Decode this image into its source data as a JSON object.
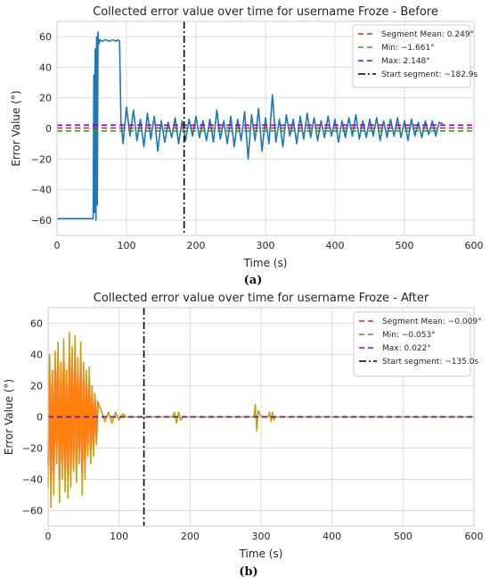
{
  "chart_data": [
    {
      "type": "line",
      "title": "Collected error value over time for username Froze - Before",
      "xlabel": "Time (s)",
      "ylabel": "Error Value (°)",
      "caption": "(a)",
      "xlim": [
        0,
        600
      ],
      "ylim": [
        -70,
        70
      ],
      "xticks": [
        0,
        100,
        200,
        300,
        400,
        500,
        600
      ],
      "yticks": [
        -60,
        -40,
        -20,
        0,
        20,
        40,
        60
      ],
      "xtick_labels": [
        "0",
        "100",
        "200",
        "300",
        "400",
        "500",
        "600"
      ],
      "ytick_labels": [
        "−60",
        "−40",
        "−20",
        "0",
        "20",
        "40",
        "60"
      ],
      "grid": true,
      "legend_position": "top-right",
      "colors": {
        "signal": "#1f77b4",
        "mean": "#d62728",
        "min": "#2ca02c",
        "max": "#9400d3",
        "start": "#000000"
      },
      "series": [
        {
          "x": [
            0,
            10,
            20,
            30,
            40,
            50,
            52,
            53,
            54,
            55,
            56,
            57,
            58,
            59,
            60,
            62,
            65,
            70,
            75,
            80,
            85,
            88,
            90,
            92,
            95,
            100,
            105,
            110,
            115,
            120,
            125,
            130,
            135,
            140,
            145,
            150,
            155,
            160,
            165,
            170,
            175,
            180,
            185,
            190,
            195,
            200,
            205,
            210,
            215,
            220,
            225,
            230,
            235,
            240,
            245,
            250,
            255,
            260,
            265,
            270,
            275,
            280,
            285,
            290,
            295,
            300,
            305,
            310,
            315,
            320,
            325,
            330,
            335,
            340,
            345,
            350,
            355,
            360,
            365,
            370,
            375,
            380,
            385,
            390,
            395,
            400,
            405,
            410,
            415,
            420,
            425,
            430,
            435,
            440,
            445,
            450,
            455,
            460,
            465,
            470,
            475,
            480,
            485,
            490,
            495,
            500,
            505,
            510,
            515,
            520,
            525,
            530,
            535,
            540,
            545,
            550,
            555
          ],
          "values": [
            -59,
            -59,
            -59,
            -59,
            -59,
            -59,
            -59,
            35,
            -55,
            52,
            -60,
            60,
            -50,
            63,
            55,
            58,
            57,
            58,
            57,
            58,
            57,
            58,
            57,
            5,
            -10,
            14,
            -5,
            12,
            -8,
            6,
            -12,
            10,
            -7,
            8,
            -15,
            5,
            -9,
            4,
            -6,
            7,
            -10,
            5,
            -8,
            6,
            -5,
            8,
            -6,
            5,
            -8,
            6,
            -9,
            12,
            -7,
            5,
            -10,
            8,
            -12,
            6,
            -8,
            11,
            -20,
            9,
            -8,
            13,
            -15,
            7,
            -10,
            22,
            -9,
            6,
            -12,
            9,
            -5,
            6,
            -10,
            8,
            -7,
            10,
            -6,
            7,
            -8,
            5,
            -6,
            8,
            -5,
            6,
            -9,
            5,
            -6,
            7,
            -5,
            9,
            -7,
            5,
            -6,
            6,
            -5,
            7,
            -8,
            5,
            -6,
            6,
            -5,
            7,
            -6,
            5,
            -8,
            6,
            -5,
            4,
            -6,
            5,
            -4,
            5,
            -5,
            4,
            3
          ]
        }
      ],
      "hlines": [
        {
          "name": "Segment Mean: 0.249°",
          "value": 0.249,
          "role": "mean"
        },
        {
          "name": "Min: −1.661°",
          "value": -1.661,
          "role": "min"
        },
        {
          "name": "Max: 2.148°",
          "value": 2.148,
          "role": "max"
        }
      ],
      "vlines": [
        {
          "name": "Start segment: ~182.9s",
          "value": 182.9,
          "role": "start"
        }
      ]
    },
    {
      "type": "line",
      "title": "Collected error value over time for username Froze - After",
      "xlabel": "Time (s)",
      "ylabel": "Error Value (°)",
      "caption": "(b)",
      "xlim": [
        0,
        600
      ],
      "ylim": [
        -70,
        70
      ],
      "xticks": [
        0,
        100,
        200,
        300,
        400,
        500,
        600
      ],
      "yticks": [
        -60,
        -40,
        -20,
        0,
        20,
        40,
        60
      ],
      "xtick_labels": [
        "0",
        "100",
        "200",
        "300",
        "400",
        "500",
        "600"
      ],
      "ytick_labels": [
        "−60",
        "−40",
        "−20",
        "0",
        "20",
        "40",
        "60"
      ],
      "grid": true,
      "legend_position": "top-right",
      "colors": {
        "signal": "#c8a000",
        "signal2": "#ff7f0e",
        "band": "#ff80ff",
        "mean": "#d62728",
        "min": "#2ca02c",
        "max": "#7f00ff",
        "start": "#000000"
      },
      "series": [
        {
          "x": [
            0,
            2,
            4,
            6,
            8,
            10,
            12,
            14,
            16,
            18,
            20,
            22,
            24,
            26,
            28,
            30,
            32,
            34,
            36,
            38,
            40,
            42,
            44,
            46,
            48,
            50,
            52,
            54,
            56,
            58,
            60,
            62,
            64,
            66,
            68,
            70,
            75,
            80,
            85,
            90,
            95,
            100,
            105,
            110,
            130,
            150,
            175,
            178,
            181,
            184,
            187,
            190,
            200,
            240,
            290,
            292,
            294,
            296,
            300,
            310,
            312,
            314,
            316,
            318,
            320,
            330,
            400,
            500,
            600
          ],
          "values": [
            -45,
            40,
            -58,
            30,
            -50,
            42,
            -30,
            48,
            -55,
            35,
            -40,
            50,
            -48,
            30,
            -52,
            54,
            -45,
            45,
            -35,
            52,
            -42,
            38,
            -30,
            48,
            -50,
            35,
            -40,
            30,
            -25,
            32,
            -30,
            20,
            -25,
            15,
            -18,
            10,
            4,
            -3,
            3,
            -4,
            3,
            -2,
            2,
            0,
            0,
            0,
            0,
            3,
            -4,
            3,
            -2,
            0,
            0,
            0,
            0,
            8,
            -9,
            4,
            0,
            0,
            3,
            -3,
            3,
            -2,
            0,
            0,
            0,
            0,
            0
          ]
        }
      ],
      "hlines": [
        {
          "name": "Segment Mean: −0.009°",
          "value": -0.009,
          "role": "mean"
        },
        {
          "name": "Min: −0.053°",
          "value": -0.053,
          "role": "min"
        },
        {
          "name": "Max: 0.022°",
          "value": 0.022,
          "role": "max"
        }
      ],
      "vlines": [
        {
          "name": "Start segment: ~135.0s",
          "value": 135.0,
          "role": "start"
        }
      ]
    }
  ]
}
